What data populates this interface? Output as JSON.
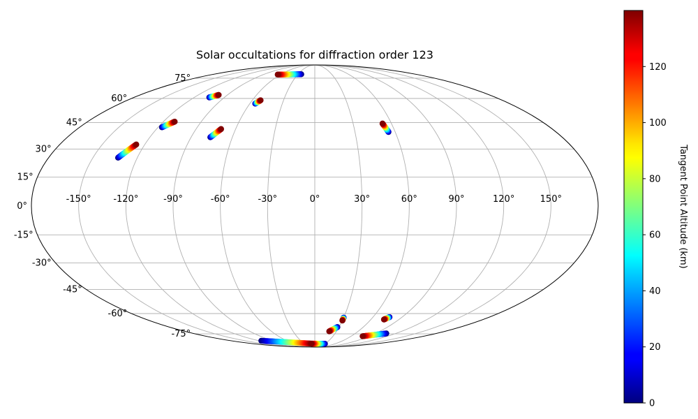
{
  "chart_data": {
    "type": "scatter",
    "projection": "mollweide",
    "title": "Solar occultations for diffraction order 123",
    "grid": true,
    "lon_ticks": [
      -150,
      -120,
      -90,
      -60,
      -30,
      0,
      30,
      60,
      90,
      120,
      150
    ],
    "lat_ticks": [
      -75,
      -60,
      -45,
      -30,
      -15,
      0,
      15,
      30,
      45,
      60,
      75
    ],
    "lon_tick_labels": [
      "-150°",
      "-120°",
      "-90°",
      "-60°",
      "-30°",
      "0°",
      "30°",
      "60°",
      "90°",
      "120°",
      "150°"
    ],
    "lat_tick_labels": [
      "-75°",
      "-60°",
      "-45°",
      "-30°",
      "-15°",
      "0°",
      "15°",
      "30°",
      "45°",
      "60°",
      "75°"
    ],
    "colorbar": {
      "label": "Tangent Point Altitude (km)",
      "colormap": "jet",
      "range": [
        0,
        140
      ],
      "ticks": [
        0,
        20,
        40,
        60,
        80,
        100,
        120
      ],
      "tick_labels": [
        "0",
        "20",
        "40",
        "60",
        "80",
        "100",
        "120"
      ],
      "placement": "right"
    },
    "tracks": [
      {
        "start": {
          "lon": -133,
          "lat": 25.3,
          "alt": 0
        },
        "end": {
          "lon": -126,
          "lat": 32.5,
          "alt": 140
        }
      },
      {
        "start": {
          "lon": -117,
          "lat": 42.2,
          "alt": 0
        },
        "end": {
          "lon": -111,
          "lat": 45.5,
          "alt": 140
        }
      },
      {
        "start": {
          "lon": -105,
          "lat": 60.7,
          "alt": 0
        },
        "end": {
          "lon": -99,
          "lat": 62.4,
          "alt": 140
        }
      },
      {
        "start": {
          "lon": -76,
          "lat": 36.5,
          "alt": 0
        },
        "end": {
          "lon": -71,
          "lat": 41.2,
          "alt": 140
        }
      },
      {
        "start": {
          "lon": -55,
          "lat": 56.6,
          "alt": 0
        },
        "end": {
          "lon": -52,
          "lat": 58.8,
          "alt": 140
        }
      },
      {
        "start": {
          "lon": -24,
          "lat": 78.5,
          "alt": 0
        },
        "end": {
          "lon": -65,
          "lat": 78.2,
          "alt": 140
        }
      },
      {
        "start": {
          "lon": 55,
          "lat": 39.5,
          "alt": 0
        },
        "end": {
          "lon": 53,
          "lat": 44.4,
          "alt": 140
        }
      },
      {
        "start": {
          "lon": 30,
          "lat": -62.8,
          "alt": 0
        },
        "end": {
          "lon": 30,
          "lat": -64.8,
          "alt": 140
        }
      },
      {
        "start": {
          "lon": 77,
          "lat": -62.4,
          "alt": 0
        },
        "end": {
          "lon": 74,
          "lat": -64.1,
          "alt": 140
        }
      },
      {
        "start": {
          "lon": 28,
          "lat": -69.6,
          "alt": 0
        },
        "end": {
          "lon": 20,
          "lat": -73.0,
          "alt": 140
        }
      },
      {
        "start": {
          "lon": 106,
          "lat": -74.7,
          "alt": 0
        },
        "end": {
          "lon": 79,
          "lat": -77.1,
          "alt": 140
        }
      },
      {
        "start": {
          "lon": -115,
          "lat": -81.4,
          "alt": 0
        },
        "end": {
          "lon": -10,
          "lat": -84.5,
          "alt": 140
        }
      },
      {
        "start": {
          "lon": 30,
          "lat": -84.7,
          "alt": 0
        },
        "end": {
          "lon": -10,
          "lat": -84.5,
          "alt": 140
        }
      }
    ]
  }
}
